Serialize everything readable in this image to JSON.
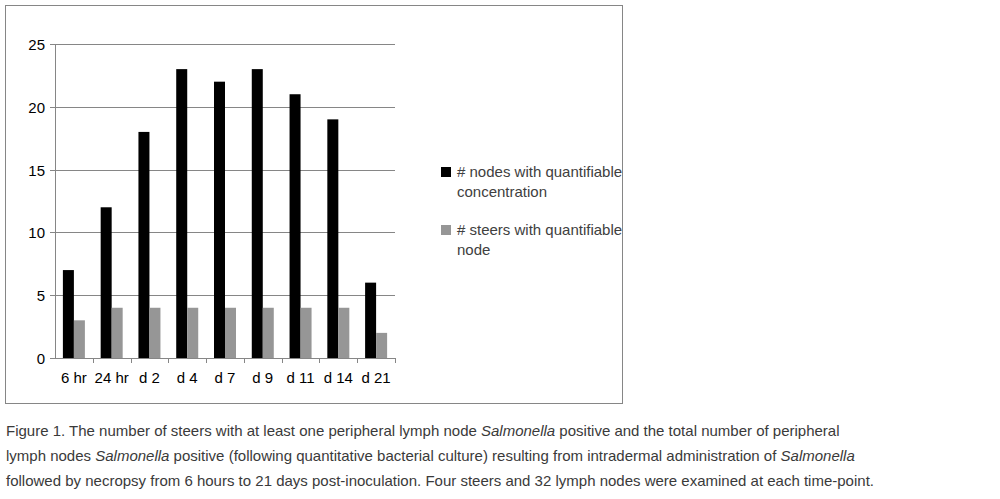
{
  "chart_data": {
    "type": "bar",
    "categories": [
      "6 hr",
      "24 hr",
      "d 2",
      "d 4",
      "d 7",
      "d 9",
      "d 11",
      "d 14",
      "d 21"
    ],
    "series": [
      {
        "name": "# nodes with quantifiable concentration",
        "color": "#000000",
        "values": [
          7,
          12,
          18,
          23,
          22,
          23,
          21,
          19,
          6
        ]
      },
      {
        "name": "# steers with quantifiable node",
        "color": "#969696",
        "values": [
          3,
          4,
          4,
          4,
          4,
          4,
          4,
          4,
          2
        ]
      }
    ],
    "ylim": [
      0,
      25
    ],
    "yticks": [
      0,
      5,
      10,
      15,
      20,
      25
    ],
    "grid": true,
    "legend": "right"
  },
  "caption": [
    [
      {
        "text": "Figure 1. The number of steers with at least one peripheral lymph node "
      },
      {
        "text": "Salmonella",
        "italic": true
      },
      {
        "text": " positive and the total number of peripheral"
      }
    ],
    [
      {
        "text": "lymph nodes "
      },
      {
        "text": "Salmonella",
        "italic": true
      },
      {
        "text": " positive (following quantitative bacterial culture) resulting from intradermal administration of "
      },
      {
        "text": "Salmonella",
        "italic": true
      }
    ],
    [
      {
        "text": "followed by necropsy from 6 hours to 21 days post-inoculation. Four steers and 32 lymph nodes were examined at each time-point."
      }
    ]
  ]
}
